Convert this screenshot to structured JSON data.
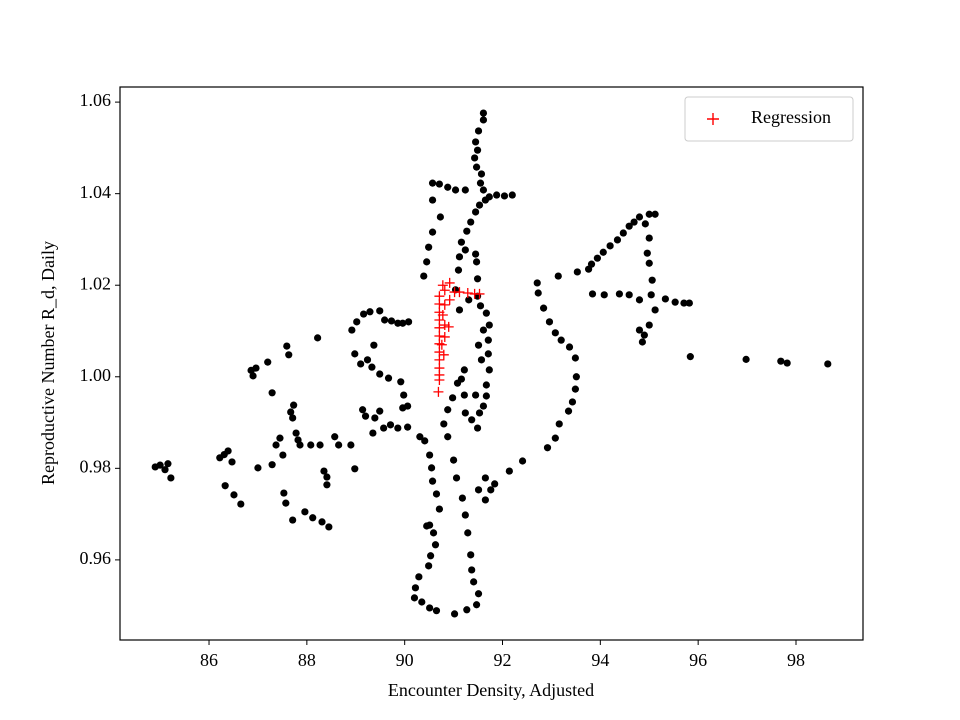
{
  "chart_data": {
    "type": "scatter",
    "xlabel": "Encounter Density, Adjusted",
    "ylabel": "Reproductive Number R_d, Daily",
    "xlim": [
      84.18,
      99.37
    ],
    "ylim": [
      0.9425,
      1.0633
    ],
    "xticks": [
      86,
      88,
      90,
      92,
      94,
      96,
      98
    ],
    "yticks": [
      0.96,
      0.98,
      {
        "value": 1.0,
        "label": "1.00"
      },
      1.02,
      1.04,
      1.06
    ],
    "legend": "upper right",
    "series": [
      {
        "color": "#000000",
        "marker": "circle",
        "x": [
          84.9,
          85.0,
          85.1,
          85.16,
          85.22,
          86.22,
          86.31,
          86.39,
          86.47,
          86.33,
          86.51,
          86.65,
          86.86,
          86.9,
          86.96,
          87.0,
          87.2,
          87.29,
          87.29,
          87.37,
          87.45,
          87.51,
          87.53,
          87.57,
          87.59,
          87.63,
          87.67,
          87.71,
          87.71,
          87.73,
          87.78,
          87.82,
          87.86,
          87.96,
          88.08,
          88.12,
          88.22,
          88.27,
          88.35,
          88.41,
          88.41,
          88.31,
          88.45,
          88.57,
          88.65,
          88.9,
          88.98,
          88.98,
          88.92,
          89.02,
          89.16,
          89.29,
          89.49,
          89.59,
          89.73,
          89.86,
          89.96,
          90.08,
          89.37,
          89.24,
          89.1,
          89.33,
          89.49,
          89.67,
          89.92,
          89.98,
          89.96,
          89.49,
          89.39,
          89.35,
          89.57,
          89.71,
          89.86,
          90.06,
          90.06,
          89.14,
          89.2,
          90.57,
          90.49,
          90.45,
          90.39,
          90.57,
          90.73,
          90.57,
          90.71,
          90.88,
          91.04,
          91.24,
          90.31,
          90.41,
          90.51,
          90.55,
          90.57,
          90.65,
          90.71,
          90.51,
          90.45,
          90.59,
          90.63,
          90.53,
          90.49,
          90.29,
          90.22,
          90.2,
          90.35,
          90.51,
          90.65,
          91.02,
          91.27,
          91.47,
          91.51,
          91.41,
          91.37,
          91.35,
          91.29,
          91.24,
          91.18,
          91.06,
          91.0,
          90.88,
          90.8,
          90.88,
          90.98,
          91.08,
          91.16,
          91.24,
          91.37,
          91.49,
          91.53,
          91.61,
          91.67,
          91.67,
          91.73,
          91.71,
          91.71,
          91.73,
          91.67,
          91.55,
          91.49,
          91.49,
          91.47,
          91.45,
          91.24,
          91.12,
          91.16,
          91.27,
          91.35,
          91.45,
          91.53,
          91.65,
          91.73,
          91.88,
          92.04,
          92.2,
          91.61,
          91.55,
          91.57,
          91.47,
          91.43,
          91.45,
          91.51,
          91.61,
          91.61,
          91.49,
          91.1,
          91.04,
          91.12,
          91.31,
          91.61,
          91.51,
          91.57,
          91.45,
          91.22,
          91.22,
          91.65,
          91.76,
          91.65,
          91.51,
          91.84,
          92.14,
          92.41,
          92.71,
          92.73,
          92.84,
          92.96,
          93.08,
          93.2,
          93.37,
          93.49,
          93.51,
          93.49,
          93.43,
          93.35,
          93.16,
          93.08,
          92.92,
          93.14,
          93.53,
          93.76,
          93.82,
          93.94,
          94.06,
          94.2,
          94.35,
          94.47,
          94.59,
          94.69,
          94.8,
          94.92,
          95.0,
          95.12,
          95.0,
          94.96,
          95.0,
          95.06,
          95.04,
          95.12,
          95.0,
          94.9,
          94.86,
          94.8,
          94.8,
          94.59,
          94.39,
          94.08,
          93.84,
          95.33,
          95.53,
          95.71,
          95.82,
          95.84,
          96.98,
          97.69,
          97.82,
          98.65
        ],
        "y": [
          0.9803,
          0.9807,
          0.9797,
          0.981,
          0.9779,
          0.9823,
          0.983,
          0.9838,
          0.9814,
          0.9762,
          0.9742,
          0.9722,
          1.0014,
          1.0002,
          1.0019,
          0.9801,
          1.0032,
          0.9965,
          0.9808,
          0.9851,
          0.9866,
          0.9829,
          0.9746,
          0.9724,
          1.0067,
          1.0048,
          0.9923,
          0.991,
          0.9687,
          0.9938,
          0.9877,
          0.9862,
          0.9851,
          0.9705,
          0.9851,
          0.9692,
          1.0085,
          0.9851,
          0.9794,
          0.9781,
          0.9764,
          0.9683,
          0.9672,
          0.9869,
          0.9851,
          0.9851,
          0.9799,
          1.005,
          1.0102,
          1.012,
          1.0137,
          1.0142,
          1.0144,
          1.0124,
          1.0122,
          1.0117,
          1.0117,
          1.012,
          1.0069,
          1.0037,
          1.0028,
          1.0021,
          1.0006,
          0.9997,
          0.9989,
          0.996,
          0.9932,
          0.9925,
          0.991,
          0.9877,
          0.9888,
          0.9895,
          0.9888,
          0.9936,
          0.989,
          0.9928,
          0.9914,
          1.0386,
          1.0283,
          1.0251,
          1.022,
          1.0316,
          1.0349,
          1.0423,
          1.0421,
          1.0414,
          1.0408,
          1.0408,
          0.9869,
          0.986,
          0.9829,
          0.9801,
          0.9772,
          0.9744,
          0.9711,
          0.9676,
          0.9674,
          0.9659,
          0.9633,
          0.9609,
          0.9587,
          0.9563,
          0.9539,
          0.9517,
          0.9508,
          0.9495,
          0.9489,
          0.9482,
          0.9491,
          0.9502,
          0.9526,
          0.9552,
          0.9578,
          0.9611,
          0.9659,
          0.9698,
          0.9735,
          0.9779,
          0.9818,
          0.9869,
          0.9897,
          0.9928,
          0.9954,
          0.9986,
          0.9995,
          0.9921,
          0.9906,
          0.9888,
          0.9921,
          0.9936,
          0.9958,
          0.9982,
          1.0015,
          1.005,
          1.008,
          1.0113,
          1.0139,
          1.0155,
          1.0176,
          1.0214,
          1.0251,
          1.0268,
          1.0277,
          1.0262,
          1.0294,
          1.0318,
          1.0338,
          1.036,
          1.0375,
          1.0386,
          1.0393,
          1.0397,
          1.0395,
          1.0397,
          1.0408,
          1.0423,
          1.0443,
          1.0458,
          1.0478,
          1.0513,
          1.0537,
          1.0561,
          1.0576,
          1.0495,
          1.0233,
          1.019,
          1.0146,
          1.0168,
          1.0102,
          1.0069,
          1.0037,
          0.996,
          0.996,
          1.0015,
          0.9779,
          0.9753,
          0.9731,
          0.9753,
          0.9766,
          0.9794,
          0.9816,
          1.0205,
          1.0183,
          1.015,
          1.012,
          1.0096,
          1.008,
          1.0065,
          1.0041,
          1.0,
          0.9973,
          0.9945,
          0.9925,
          0.9897,
          0.9866,
          0.9845,
          1.022,
          1.0229,
          1.0235,
          1.0246,
          1.0259,
          1.0272,
          1.0286,
          1.0299,
          1.0314,
          1.0329,
          1.0338,
          1.0349,
          1.0334,
          1.0355,
          1.0355,
          1.0303,
          1.027,
          1.0248,
          1.0211,
          1.0179,
          1.0146,
          1.0113,
          1.0091,
          1.0076,
          1.0102,
          1.0168,
          1.0179,
          1.0181,
          1.0179,
          1.0181,
          1.017,
          1.0163,
          1.0161,
          1.0161,
          1.0044,
          1.0038,
          1.0034,
          1.003,
          1.0028
        ]
      },
      {
        "name": "Regression",
        "color": "#ff0000",
        "marker": "plus",
        "x": [
          90.69,
          90.71,
          90.71,
          90.71,
          90.71,
          90.71,
          90.71,
          90.71,
          90.71,
          90.71,
          90.71,
          90.71,
          90.71,
          90.78,
          90.82,
          90.92,
          91.02,
          90.92,
          90.82,
          90.82,
          90.9,
          90.82,
          90.8,
          91.12,
          91.29,
          91.43,
          91.53,
          90.78,
          90.76
        ],
        "y": [
          0.9967,
          0.9993,
          1.0004,
          1.0019,
          1.0037,
          1.0054,
          1.0072,
          1.0089,
          1.0107,
          1.0124,
          1.0141,
          1.0159,
          1.0176,
          1.02,
          1.0189,
          1.0205,
          1.0185,
          1.0168,
          1.0157,
          1.0113,
          1.0109,
          1.0087,
          1.0048,
          1.0185,
          1.0183,
          1.0181,
          1.0181,
          1.0135,
          1.007
        ]
      }
    ]
  }
}
